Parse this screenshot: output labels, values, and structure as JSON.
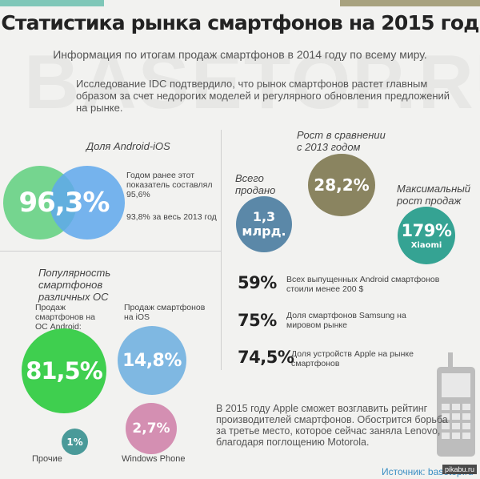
{
  "header": {
    "title": "Статистика рынка смартфонов на 2015 год",
    "watermark": "BASETOP.RU",
    "subtitle": "Информация по итогам продаж смартфонов в 2014 году по всему миру.",
    "intro": "Исследование IDC подтвердило, что рынок смартфонов растет главным образом за счет недорогих моделей и регулярного обновления предложений на рынке."
  },
  "android_ios": {
    "heading": "Доля Android-iOS",
    "value": "96,3%",
    "note_previous": "Годом ранее этот показатель составлял 95,6%",
    "note_2013": "93,8% за весь 2013 год"
  },
  "os_popularity": {
    "heading": "Популярность смартфонов различных ОС",
    "android_label": "Продаж смартфонов на ОС Android:",
    "android_value": "81,5%",
    "ios_label": "Продаж смартфонов на iOS",
    "ios_value": "14,8%",
    "windows_label": "Windows Phone",
    "windows_value": "2,7%",
    "other_label": "Прочие",
    "other_value": "1%"
  },
  "growth": {
    "heading": "Рост в сравнении с 2013 годом",
    "value": "28,2%"
  },
  "total_sold": {
    "heading": "Всего продано",
    "value_line1": "1,3",
    "value_line2": "млрд."
  },
  "max_growth": {
    "heading": "Максимальный рост продаж",
    "value": "179%",
    "brand": "Xiaomi"
  },
  "stats": [
    {
      "value": "59%",
      "text": "Всех выпущенных Android смартфонов стоили менее 200 $"
    },
    {
      "value": "75%",
      "text": "Доля смартфонов Samsung на мировом рынке"
    },
    {
      "value": "74,5%",
      "text": "Доля устройств Apple на рынке смартфонов"
    }
  ],
  "footer": {
    "text": "В 2015 году Apple сможет возглавить рейтинг производителей смартфонов. Обострится борьба за третье место, которое сейчас заняла Lenovo, благодаря поглощению Motorola.",
    "source": "Источник: basetop.ru",
    "badge": "pikabu.ru"
  },
  "icons": {
    "phone": "mobile-phone-icon"
  },
  "colors": {
    "green": "#5fd07e",
    "blue": "#5fa8ec",
    "olive": "#8a8460",
    "steel": "#5b88a8",
    "teal": "#35a393",
    "light_blue": "#7fb8e2",
    "pink": "#d48fb2",
    "dark_teal": "#4a9a99",
    "bright_green": "#3fcf4f"
  }
}
